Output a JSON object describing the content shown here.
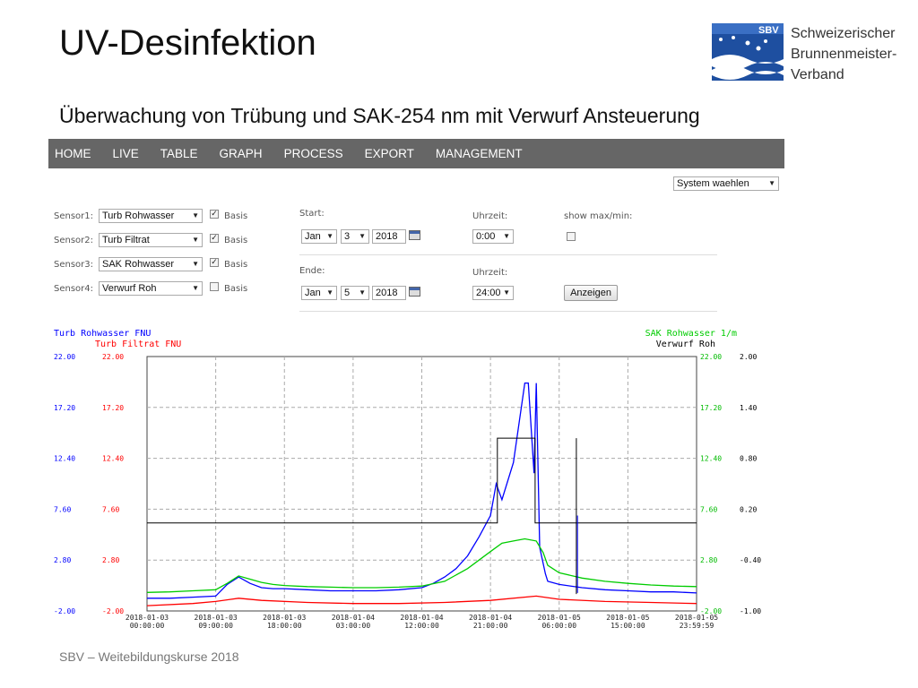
{
  "slide": {
    "title": "UV-Desinfektion",
    "subtitle": "Überwachung von Trübung und SAK-254 nm mit Verwurf Ansteuerung",
    "footer": "SBV – Weitebildungskurse 2018"
  },
  "logo": {
    "badge": "SBV",
    "lines": [
      "Schweizerischer",
      "Brunnenmeister-",
      "Verband"
    ],
    "color": "#1e4fa0"
  },
  "nav": {
    "items": [
      {
        "key": "home",
        "label": "HOME"
      },
      {
        "key": "live",
        "label": "LIVE"
      },
      {
        "key": "table",
        "label": "TABLE"
      },
      {
        "key": "graph",
        "label": "GRAPH"
      },
      {
        "key": "process",
        "label": "PROCESS"
      },
      {
        "key": "export",
        "label": "EXPORT"
      },
      {
        "key": "management",
        "label": "MANAGEMENT"
      }
    ]
  },
  "system_select": {
    "value": "System waehlen"
  },
  "sensors": [
    {
      "label": "Sensor1:",
      "value": "Turb Rohwasser",
      "basis_checked": true
    },
    {
      "label": "Sensor2:",
      "value": "Turb Filtrat",
      "basis_checked": true
    },
    {
      "label": "Sensor3:",
      "value": "SAK Rohwasser",
      "basis_checked": true
    },
    {
      "label": "Sensor4:",
      "value": "Verwurf Roh",
      "basis_checked": false
    }
  ],
  "basis_label": "Basis",
  "start": {
    "label": "Start:",
    "month": "Jan",
    "day": "3",
    "year": "2018"
  },
  "end": {
    "label": "Ende:",
    "month": "Jan",
    "day": "5",
    "year": "2018"
  },
  "time_start": {
    "label": "Uhrzeit:",
    "value": "0:00"
  },
  "time_end": {
    "label": "Uhrzeit:",
    "value": "24:00"
  },
  "show_maxmin": {
    "label": "show max/min:",
    "checked": false
  },
  "show_button": {
    "label": "Anzeigen"
  },
  "chart_data": {
    "type": "line",
    "left_axis_titles": [
      {
        "text": "Turb Rohwasser FNU",
        "color": "#0000ff"
      },
      {
        "text": "Turb Filtrat FNU",
        "color": "#ff0000"
      }
    ],
    "right_axis_titles": [
      {
        "text": "SAK Rohwasser 1/m",
        "color": "#00cc00"
      },
      {
        "text": "Verwurf Roh",
        "color": "#000000"
      }
    ],
    "y_left_ticks": [
      "22.00",
      "17.20",
      "12.40",
      "7.60",
      "2.80",
      "-2.00"
    ],
    "y_left_ticks_2": [
      "22.00",
      "17.20",
      "12.40",
      "7.60",
      "2.80",
      "-2.00"
    ],
    "y_right_ticks": [
      "22.00",
      "17.20",
      "12.40",
      "7.60",
      "2.80",
      "-2.00"
    ],
    "y_right_ticks_2": [
      "2.00",
      "1.40",
      "0.80",
      "0.20",
      "-0.40",
      "-1.00"
    ],
    "ylim": [
      -2,
      22
    ],
    "x_ticks": [
      [
        "2018-01-03",
        "00:00:00"
      ],
      [
        "2018-01-03",
        "09:00:00"
      ],
      [
        "2018-01-03",
        "18:00:00"
      ],
      [
        "2018-01-04",
        "03:00:00"
      ],
      [
        "2018-01-04",
        "12:00:00"
      ],
      [
        "2018-01-04",
        "21:00:00"
      ],
      [
        "2018-01-05",
        "06:00:00"
      ],
      [
        "2018-01-05",
        "15:00:00"
      ],
      [
        "2018-01-05",
        "23:59:59"
      ]
    ],
    "xlim_hours": [
      0,
      48
    ],
    "grid": true,
    "series": [
      {
        "name": "Turb Rohwasser FNU",
        "color": "#0000ff",
        "x": [
          0,
          2,
          4,
          6,
          7,
          8,
          9,
          10,
          11,
          12,
          14,
          16,
          18,
          20,
          22,
          24,
          25,
          26,
          27,
          28,
          29,
          30,
          30.5,
          31,
          32,
          33,
          33.3,
          33.8,
          34,
          34.3,
          34.8,
          35,
          36,
          38,
          40,
          42,
          44,
          46,
          48
        ],
        "y": [
          -0.8,
          -0.8,
          -0.7,
          -0.6,
          0.5,
          1.2,
          0.6,
          0.2,
          0.1,
          0.1,
          0,
          -0.1,
          -0.1,
          -0.1,
          0,
          0.2,
          0.6,
          1.2,
          2.0,
          3.2,
          5.0,
          7.0,
          10.0,
          8.5,
          12.0,
          19.5,
          19.5,
          11.0,
          19.5,
          4.0,
          1.5,
          0.8,
          0.5,
          0.2,
          0.0,
          -0.1,
          -0.2,
          -0.2,
          -0.3
        ]
      },
      {
        "name": "Turb Filtrat FNU",
        "color": "#ff0000",
        "x": [
          0,
          4,
          6,
          8,
          10,
          14,
          18,
          22,
          26,
          30,
          34,
          36,
          40,
          44,
          48
        ],
        "y": [
          -1.5,
          -1.3,
          -1.1,
          -0.8,
          -1.0,
          -1.2,
          -1.3,
          -1.3,
          -1.2,
          -1.0,
          -0.6,
          -0.9,
          -1.1,
          -1.2,
          -1.3
        ]
      },
      {
        "name": "SAK Rohwasser 1/m",
        "color": "#00cc00",
        "x": [
          0,
          2,
          4,
          6,
          7,
          8,
          9,
          10,
          11,
          12,
          14,
          16,
          18,
          20,
          22,
          24,
          26,
          28,
          30,
          31,
          32,
          33,
          34,
          34.6,
          35,
          36,
          38,
          40,
          42,
          44,
          46,
          48
        ],
        "y": [
          -0.25,
          -0.2,
          -0.1,
          0.0,
          0.6,
          1.3,
          1.0,
          0.7,
          0.5,
          0.4,
          0.3,
          0.25,
          0.2,
          0.2,
          0.25,
          0.35,
          0.8,
          2.0,
          3.6,
          4.4,
          4.6,
          4.8,
          4.6,
          3.5,
          2.3,
          1.6,
          1.1,
          0.8,
          0.6,
          0.45,
          0.35,
          0.3
        ]
      },
      {
        "name": "Verwurf Roh",
        "color": "#000000",
        "step": true,
        "x": [
          0,
          30.6,
          30.6,
          33.9,
          33.9,
          48
        ],
        "y": [
          6.3,
          6.3,
          14.3,
          14.3,
          6.3,
          6.3
        ]
      }
    ]
  }
}
